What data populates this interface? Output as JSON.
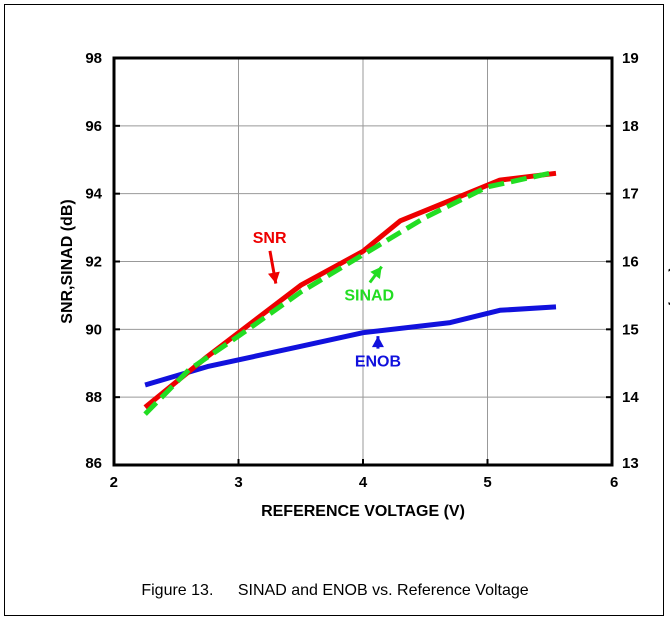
{
  "chart_data": {
    "type": "line",
    "xlabel": "REFERENCE VOLTAGE (V)",
    "ylabel": "SNR,SINAD (dB)",
    "y2label": "ENOB (Bits)",
    "xlim": [
      2,
      6
    ],
    "ylim": [
      86,
      98
    ],
    "y2lim": [
      13,
      19
    ],
    "xticks": [
      "2",
      "3",
      "4",
      "5",
      "6"
    ],
    "yticks": [
      "86",
      "88",
      "90",
      "92",
      "94",
      "96",
      "98"
    ],
    "y2ticks": [
      "13",
      "14",
      "15",
      "16",
      "17",
      "18",
      "19"
    ],
    "grid": true,
    "series": [
      {
        "name": "SNR",
        "axis": "left",
        "color": "#ee0000",
        "style": "solid",
        "x": [
          2.25,
          2.75,
          3.0,
          3.5,
          4.0,
          4.3,
          4.7,
          5.1,
          5.55
        ],
        "y": [
          87.7,
          89.2,
          89.9,
          91.3,
          92.3,
          93.2,
          93.8,
          94.4,
          94.6
        ]
      },
      {
        "name": "SINAD",
        "axis": "left",
        "color": "#22dd22",
        "style": "dashed",
        "x": [
          2.25,
          2.6,
          3.0,
          3.5,
          4.0,
          4.5,
          5.0,
          5.5
        ],
        "y": [
          87.5,
          88.8,
          89.8,
          91.1,
          92.2,
          93.3,
          94.2,
          94.6
        ]
      },
      {
        "name": "ENOB",
        "axis": "right",
        "color": "#1111dd",
        "style": "solid",
        "x": [
          2.25,
          2.75,
          3.5,
          4.0,
          4.7,
          5.1,
          5.55
        ],
        "y": [
          14.18,
          14.45,
          14.75,
          14.95,
          15.1,
          15.28,
          15.33
        ]
      }
    ],
    "annotations": [
      {
        "text": "SNR",
        "color": "#ee0000",
        "x": 3.25,
        "y": 92.55,
        "arrow_to": [
          3.3,
          91.35
        ]
      },
      {
        "text": "SINAD",
        "color": "#22dd22",
        "x": 4.05,
        "y": 90.85,
        "arrow_to": [
          4.15,
          91.85
        ]
      },
      {
        "text": "ENOB",
        "color": "#1111dd",
        "x": 4.12,
        "y": 88.9,
        "arrow_to": [
          4.12,
          89.8
        ]
      }
    ]
  },
  "caption": {
    "figure": "Figure 13.",
    "text": "SINAD and ENOB vs. Reference Voltage"
  }
}
